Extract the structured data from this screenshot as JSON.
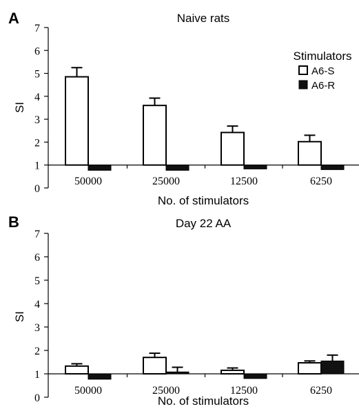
{
  "panels": [
    {
      "letter": "A",
      "chart_data": {
        "type": "bar",
        "title": "Naive rats",
        "xlabel": "No. of stimulators",
        "ylabel": "SI",
        "categories": [
          "50000",
          "25000",
          "12500",
          "6250"
        ],
        "ylim": [
          0,
          7
        ],
        "yticks": [
          "0",
          "1",
          "2",
          "3",
          "4",
          "5",
          "6",
          "7"
        ],
        "baseline": 1,
        "series": [
          {
            "name": "A6-S",
            "values": [
              4.85,
              3.6,
              2.42,
              2.02
            ],
            "errors": [
              0.4,
              0.32,
              0.28,
              0.28
            ],
            "fill": "#ffffff"
          },
          {
            "name": "A6-R",
            "values": [
              0.77,
              0.77,
              0.83,
              0.8
            ],
            "errors": [
              0,
              0,
              0,
              0.08
            ],
            "fill": "#111111"
          }
        ],
        "legend": {
          "title": "Stimulators",
          "placement": "top-right"
        },
        "grid": false
      }
    },
    {
      "letter": "B",
      "chart_data": {
        "type": "bar",
        "title": "Day 22 AA",
        "xlabel": "No. of stimulators",
        "ylabel": "SI",
        "categories": [
          "50000",
          "25000",
          "12500",
          "6250"
        ],
        "ylim": [
          0,
          7
        ],
        "yticks": [
          "0",
          "1",
          "2",
          "3",
          "4",
          "5",
          "6",
          "7"
        ],
        "baseline": 1,
        "series": [
          {
            "name": "A6-S",
            "values": [
              1.33,
              1.7,
              1.15,
              1.47
            ],
            "errors": [
              0.1,
              0.18,
              0.1,
              0.08
            ],
            "fill": "#ffffff"
          },
          {
            "name": "A6-R",
            "values": [
              0.77,
              1.08,
              0.8,
              1.55
            ],
            "errors": [
              0,
              0.2,
              0,
              0.25
            ],
            "fill": "#111111"
          }
        ],
        "grid": false
      }
    }
  ]
}
